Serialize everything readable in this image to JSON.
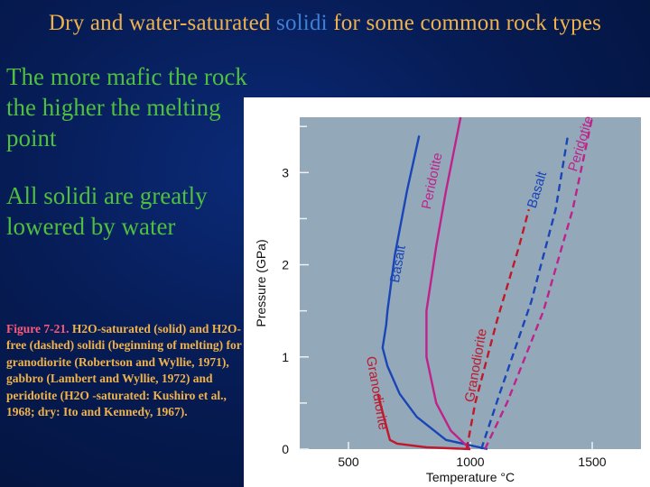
{
  "slide": {
    "title_before": "Dry and water-saturated ",
    "title_highlight": "solidi",
    "title_after": " for some common rock types",
    "bullet1": "The more mafic the rock the higher the melting point",
    "bullet2": "All solidi are greatly lowered by water",
    "caption_fig": "Figure 7-21.",
    "caption_rest": " H2O-saturated (solid) and H2O-free (dashed) solidi (beginning of melting) for granodiorite (Robertson and Wyllie, 1971), gabbro (Lambert and Wyllie, 1972) and peridotite (H2O -saturated: Kushiro et al., 1968; dry: Ito and Kennedy, 1967)."
  },
  "colors": {
    "title": "#f0b24a",
    "highlight": "#3f7fd6",
    "bullet": "#4fbf3f",
    "basalt": "#1a45b8",
    "peridotite": "#c0228c",
    "granodiorite": "#c0182c",
    "plot_bg": "#93a8b8"
  },
  "chart_data": {
    "type": "line",
    "xlabel": "Temperature °C",
    "ylabel": "Pressure (GPa)",
    "xlim": [
      300,
      1700
    ],
    "ylim": [
      0,
      3.6
    ],
    "xticks": [
      500,
      1000,
      1500
    ],
    "yticks": [
      0,
      1,
      2,
      3
    ],
    "series": [
      {
        "name": "Basalt",
        "style": "solid",
        "color": "#1a45b8",
        "points": [
          [
            1070,
            0
          ],
          [
            900,
            0.1
          ],
          [
            780,
            0.35
          ],
          [
            710,
            0.6
          ],
          [
            660,
            0.9
          ],
          [
            640,
            1.1
          ],
          [
            655,
            1.35
          ],
          [
            660,
            1.5
          ],
          [
            690,
            2.1
          ],
          [
            740,
            2.8
          ],
          [
            790,
            3.4
          ]
        ]
      },
      {
        "name": "Peridotite",
        "style": "solid",
        "color": "#c0228c",
        "points": [
          [
            1000,
            0
          ],
          [
            920,
            0.2
          ],
          [
            860,
            0.5
          ],
          [
            820,
            1.0
          ],
          [
            820,
            1.5
          ],
          [
            860,
            2.2
          ],
          [
            900,
            2.8
          ],
          [
            960,
            3.6
          ]
        ]
      },
      {
        "name": "Granodiorite",
        "style": "solid",
        "color": "#c0182c",
        "points": [
          [
            1000,
            0
          ],
          [
            820,
            0.02
          ],
          [
            700,
            0.06
          ],
          [
            670,
            0.1
          ],
          [
            650,
            0.3
          ],
          [
            620,
            0.6
          ]
        ]
      },
      {
        "name": "Granodiorite",
        "style": "dashed",
        "color": "#c0182c",
        "points": [
          [
            985,
            0
          ],
          [
            1020,
            0.5
          ],
          [
            1110,
            1.4
          ],
          [
            1200,
            2.2
          ],
          [
            1240,
            2.6
          ]
        ]
      },
      {
        "name": "Basalt",
        "style": "dashed",
        "color": "#1a45b8",
        "points": [
          [
            1045,
            0
          ],
          [
            1120,
            0.6
          ],
          [
            1250,
            1.6
          ],
          [
            1350,
            2.6
          ],
          [
            1400,
            3.4
          ]
        ]
      },
      {
        "name": "Peridotite",
        "style": "dashed",
        "color": "#c0228c",
        "points": [
          [
            1060,
            0
          ],
          [
            1150,
            0.5
          ],
          [
            1300,
            1.5
          ],
          [
            1420,
            2.6
          ],
          [
            1500,
            3.6
          ]
        ]
      }
    ],
    "annotations": [
      {
        "text": "Basalt",
        "x": 720,
        "y": 2.0
      },
      {
        "text": "Peridotite",
        "x": 860,
        "y": 2.9
      },
      {
        "text": "Granodiorite",
        "x": 600,
        "y": 0.6
      },
      {
        "text": "Granodiorite",
        "x": 1040,
        "y": 0.9
      },
      {
        "text": "Basalt",
        "x": 1290,
        "y": 2.8
      },
      {
        "text": "Peridotite",
        "x": 1470,
        "y": 3.3
      }
    ]
  }
}
